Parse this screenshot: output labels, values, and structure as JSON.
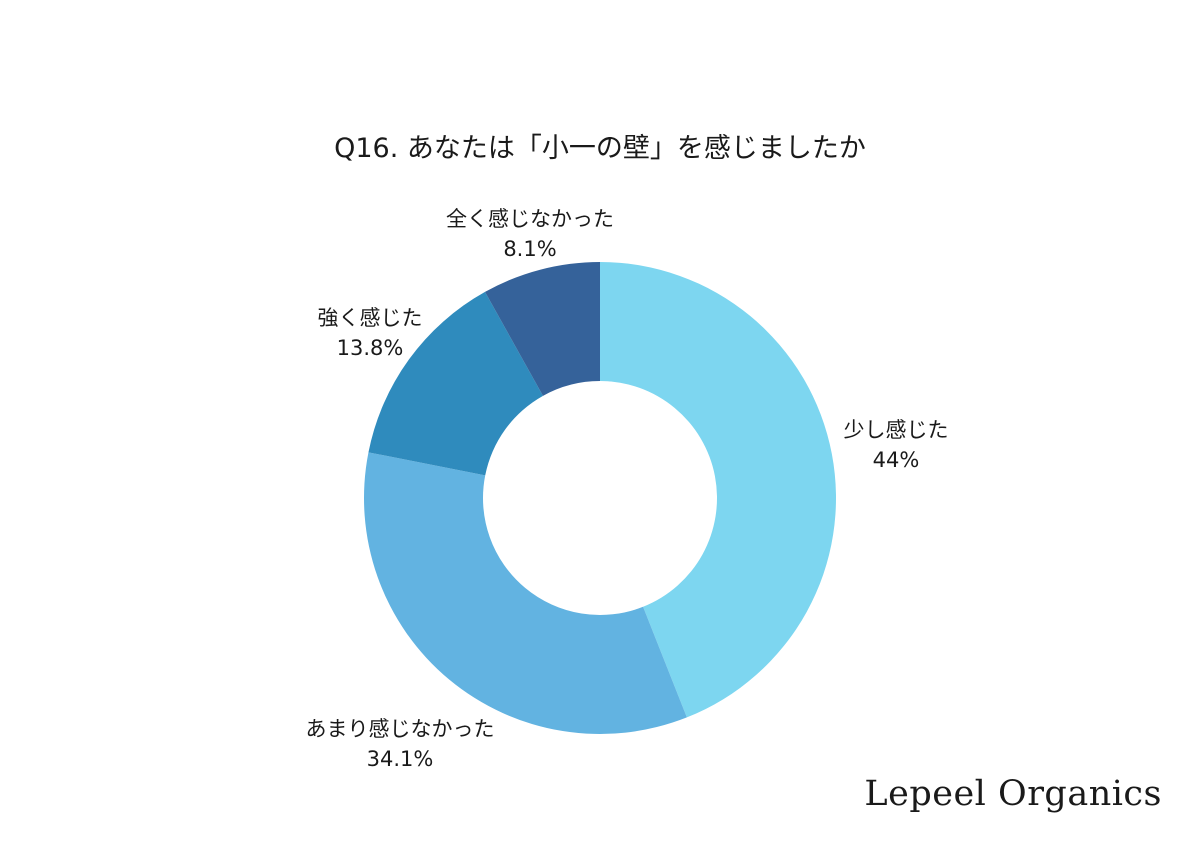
{
  "chart_data": {
    "type": "pie",
    "title": "Q16. あなたは「小一の壁」を感じましたか",
    "donut": true,
    "slices": [
      {
        "label": "少し感じた",
        "value": 44,
        "value_label": "44%",
        "color": "#7dd6f0"
      },
      {
        "label": "あまり感じなかった",
        "value": 34.1,
        "value_label": "34.1%",
        "color": "#62b3e1"
      },
      {
        "label": "強く感じた",
        "value": 13.8,
        "value_label": "13.8%",
        "color": "#2f8bbd"
      },
      {
        "label": "全く感じなかった",
        "value": 8.1,
        "value_label": "8.1%",
        "color": "#35629a"
      }
    ],
    "start": "12 o'clock",
    "direction": "clockwise"
  },
  "brand": "Lepeel Organics"
}
